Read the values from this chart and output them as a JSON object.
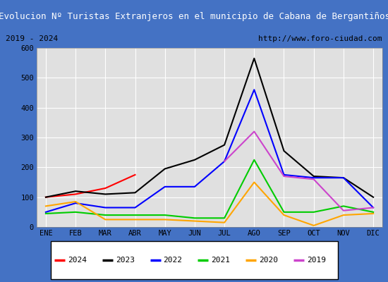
{
  "title": "Evolucion Nº Turistas Extranjeros en el municipio de Cabana de Bergantiños",
  "title_bg": "#4472c4",
  "subtitle_left": "2019 - 2024",
  "subtitle_right": "http://www.foro-ciudad.com",
  "months": [
    "ENE",
    "FEB",
    "MAR",
    "ABR",
    "MAY",
    "JUN",
    "JUL",
    "AGO",
    "SEP",
    "OCT",
    "NOV",
    "DIC"
  ],
  "ylim": [
    0,
    600
  ],
  "yticks": [
    0,
    100,
    200,
    300,
    400,
    500,
    600
  ],
  "series": {
    "2024": {
      "color": "red",
      "data": [
        100,
        110,
        130,
        175,
        null,
        null,
        null,
        null,
        null,
        null,
        null,
        null
      ]
    },
    "2023": {
      "color": "black",
      "data": [
        100,
        120,
        110,
        115,
        195,
        225,
        275,
        565,
        255,
        170,
        165,
        100
      ]
    },
    "2022": {
      "color": "blue",
      "data": [
        50,
        80,
        65,
        65,
        135,
        135,
        220,
        460,
        175,
        165,
        165,
        65
      ]
    },
    "2021": {
      "color": "#00cc00",
      "data": [
        45,
        50,
        40,
        40,
        40,
        30,
        30,
        225,
        50,
        50,
        70,
        50
      ]
    },
    "2020": {
      "color": "orange",
      "data": [
        70,
        85,
        25,
        25,
        25,
        20,
        15,
        150,
        40,
        5,
        40,
        45
      ]
    },
    "2019": {
      "color": "#cc44cc",
      "data": [
        null,
        null,
        null,
        null,
        null,
        null,
        220,
        320,
        170,
        160,
        55,
        65
      ]
    }
  },
  "plot_bg": "#e0e0e0",
  "grid_color": "white",
  "outer_bg": "white",
  "border_color": "#4472c4",
  "legend_order": [
    "2024",
    "2023",
    "2022",
    "2021",
    "2020",
    "2019"
  ]
}
